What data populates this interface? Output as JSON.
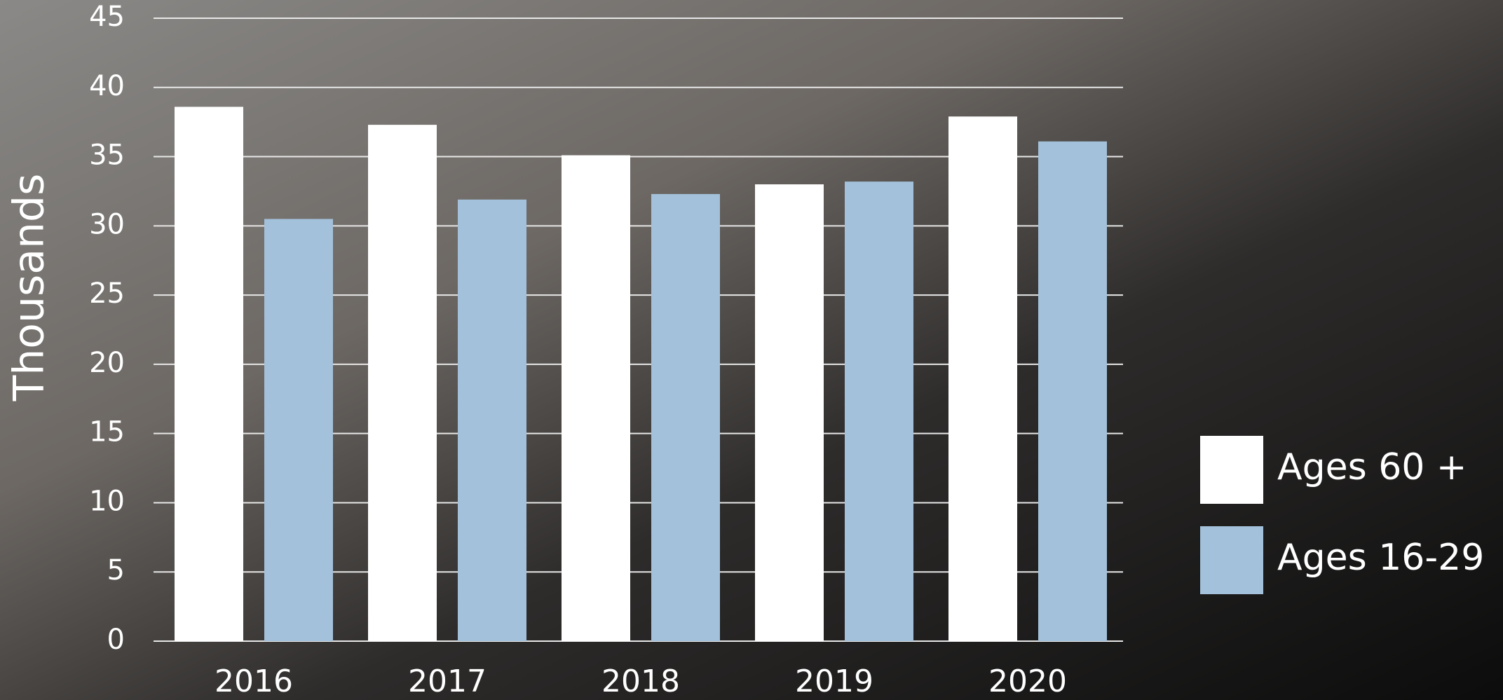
{
  "chart_data": {
    "type": "bar",
    "y_label": "Thousands",
    "categories": [
      "2016",
      "2017",
      "2018",
      "2019",
      "2020"
    ],
    "series": [
      {
        "name": "Ages 60 +",
        "color": "#ffffff",
        "values": [
          38.6,
          37.3,
          35.1,
          33.0,
          37.9
        ]
      },
      {
        "name": "Ages 16-29",
        "color": "#a3c1da",
        "values": [
          30.5,
          31.9,
          32.3,
          33.2,
          36.1
        ]
      }
    ],
    "ylim": [
      0,
      45
    ],
    "yticks": [
      0,
      5,
      10,
      15,
      20,
      25,
      30,
      35,
      40,
      45
    ],
    "grid": true,
    "legend": "right"
  }
}
